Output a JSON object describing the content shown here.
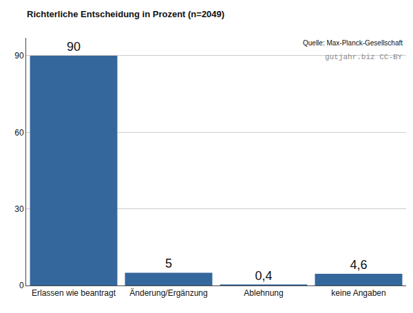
{
  "chart_data": {
    "type": "bar",
    "title": "Richterliche Entscheidung in Prozent (n=2049)",
    "categories": [
      "Erlassen wie beantragt",
      "Änderung/Ergänzung",
      "Ablehnung",
      "keine Angaben"
    ],
    "values": [
      90,
      5,
      0.4,
      4.6
    ],
    "value_labels": [
      "90",
      "5",
      "0,4",
      "4,6"
    ],
    "data_labels": true,
    "color": "#34679c",
    "ylim": [
      0,
      97
    ],
    "yticks": [
      0,
      30,
      60,
      90
    ],
    "grid": true,
    "annotations": [
      "Quelle: Max-Planck-Gesellschaft",
      "gutjahr.biz CC-BY"
    ]
  }
}
